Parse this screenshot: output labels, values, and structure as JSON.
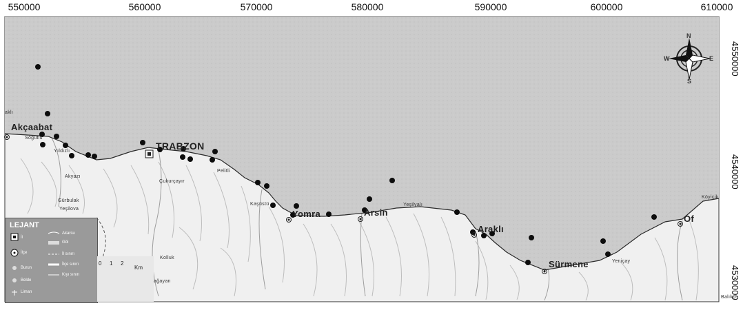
{
  "axes": {
    "x_ticks": [
      "550000",
      "560000",
      "570000",
      "580000",
      "590000",
      "600000",
      "610000"
    ],
    "y_ticks": [
      "4550000",
      "4540000",
      "4530000"
    ]
  },
  "towns": {
    "akcaabat": "Akçaabat",
    "trabzon": "TRABZON",
    "yomra": "Yomra",
    "arsin": "Arsin",
    "arakli": "Araklı",
    "surmene": "Sürmene",
    "of": "Of"
  },
  "places": {
    "akli": "aklı",
    "sogutlu": "Söğütlü",
    "yildizli": "Yıldızlı",
    "akyazi": "Akyazı",
    "gurbulak": "Gürbulak",
    "yesilova": "Yeşilova",
    "cukurcayir": "Çukurçayır",
    "pelitli": "Pelitli",
    "kasustu": "Kaşüstü",
    "yesilyali": "Yeşilyalı",
    "yenicay": "Yeniçay",
    "koyuncuk": "Köyiçik",
    "balikci": "Balıkçı",
    "kolluk": "Kolluk",
    "saghayan": "Sağayan"
  },
  "legend": {
    "title": "LEJANT",
    "il": "İl",
    "ilce": "İlçe",
    "burun": "Burun",
    "belde": "Belde",
    "liman": "Liman",
    "akarsu": "Akarsu",
    "gol": "Göl",
    "il_sinir": "İl sınırı",
    "ilce_sinir": "İlçe sınırı",
    "kiyi_cizgisi": "Kıyı sınırı"
  },
  "scale": {
    "tick0": "0",
    "tick1": "1",
    "tick2": "2",
    "unit": "Km"
  },
  "compass": {
    "n": "N",
    "s": "S",
    "e": "E",
    "w": "W"
  },
  "colors": {
    "sea": "#c9c9c9",
    "land": "#f1f1f1",
    "coast": "#2a2a2a",
    "station": "#0d0d0d",
    "relief": "#b8b8b8"
  }
}
